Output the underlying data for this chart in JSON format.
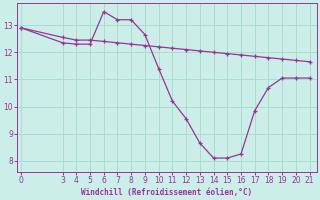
{
  "xlabel": "Windchill (Refroidissement éolien,°C)",
  "background_color": "#cceee8",
  "line_color": "#993399",
  "grid_color": "#aaddcc",
  "x_ticks": [
    0,
    3,
    4,
    5,
    6,
    7,
    8,
    9,
    10,
    11,
    12,
    13,
    14,
    15,
    16,
    17,
    18,
    19,
    20,
    21
  ],
  "y_ticks": [
    8,
    9,
    10,
    11,
    12,
    13
  ],
  "ylim": [
    7.6,
    13.8
  ],
  "xlim": [
    -0.3,
    21.5
  ],
  "line1_x": [
    0,
    3,
    4,
    5,
    6,
    7,
    8,
    9,
    10,
    11,
    12,
    13,
    14,
    15,
    16,
    17,
    18,
    19,
    20,
    21
  ],
  "line1_y": [
    12.9,
    12.55,
    12.45,
    12.45,
    12.4,
    12.35,
    12.3,
    12.25,
    12.2,
    12.15,
    12.1,
    12.05,
    12.0,
    11.95,
    11.9,
    11.85,
    11.8,
    11.75,
    11.7,
    11.65
  ],
  "line2_x": [
    0,
    3,
    4,
    5,
    6,
    7,
    8,
    9,
    10,
    11,
    12,
    13,
    14,
    15,
    16,
    17,
    18,
    19,
    20,
    21
  ],
  "line2_y": [
    12.9,
    12.35,
    12.3,
    12.3,
    13.5,
    13.2,
    13.2,
    12.65,
    11.4,
    10.2,
    9.55,
    8.65,
    8.1,
    8.1,
    8.25,
    9.85,
    10.7,
    11.05,
    11.05,
    11.05
  ]
}
